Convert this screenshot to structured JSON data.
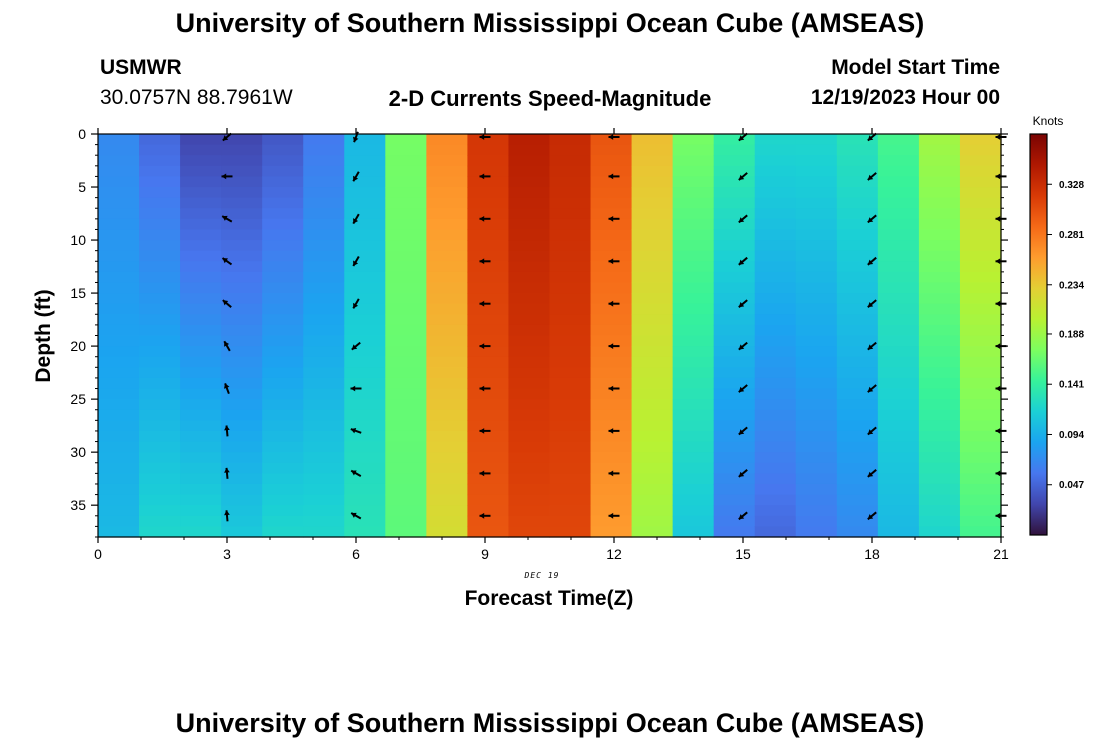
{
  "header": {
    "title": "University of Southern Mississippi Ocean Cube (AMSEAS)",
    "station_name": "USMWR",
    "station_coords": "30.0757N  88.7961W",
    "plot_title": "2-D Currents Speed-Magnitude",
    "start_label": "Model Start Time",
    "start_value": "12/19/2023 Hour 00"
  },
  "footer": {
    "title": "University of Southern Mississippi Ocean Cube (AMSEAS)"
  },
  "chart_data": {
    "type": "heatmap",
    "title": "2-D Currents Speed-Magnitude",
    "xlabel": "Forecast Time(Z)",
    "ylabel": "Depth (ft)",
    "x_ticks": [
      0,
      3,
      6,
      9,
      12,
      15,
      18,
      21
    ],
    "x_tick_labels": [
      "0",
      "3",
      "6",
      "9",
      "12",
      "15",
      "18",
      "21"
    ],
    "x_range": [
      0,
      21
    ],
    "y_ticks": [
      0,
      5,
      10,
      15,
      20,
      25,
      30,
      35
    ],
    "y_tick_labels": [
      "0",
      "5",
      "10",
      "15",
      "20",
      "25",
      "30",
      "35"
    ],
    "y_range": [
      0,
      38
    ],
    "y_inverted": true,
    "date_label": "DEC 19",
    "colorbar": {
      "label": "Knots",
      "ticks": [
        0.047,
        0.094,
        0.141,
        0.188,
        0.234,
        0.281,
        0.328
      ],
      "tick_labels": [
        "0.047",
        "0.094",
        "0.141",
        "0.188",
        "0.234",
        "0.281",
        "0.328"
      ],
      "range": [
        0.0,
        0.375
      ],
      "colors": [
        "#30123b",
        "#4146ad",
        "#4777ef",
        "#1ba4f0",
        "#1bd0d5",
        "#37f29a",
        "#7cfe5f",
        "#b9f132",
        "#e4cf34",
        "#fe9c2e",
        "#f56917",
        "#d83a06",
        "#af1801",
        "#7a0403"
      ]
    },
    "surface_speed_by_hour": [
      0.07,
      0.05,
      0.03,
      0.03,
      0.04,
      0.06,
      0.1,
      0.17,
      0.27,
      0.32,
      0.34,
      0.33,
      0.3,
      0.24,
      0.17,
      0.14,
      0.12,
      0.12,
      0.13,
      0.15,
      0.19,
      0.23
    ],
    "bottom_speed_by_hour": [
      0.1,
      0.12,
      0.12,
      0.11,
      0.12,
      0.12,
      0.13,
      0.16,
      0.22,
      0.3,
      0.31,
      0.31,
      0.26,
      0.19,
      0.11,
      0.06,
      0.05,
      0.06,
      0.07,
      0.1,
      0.12,
      0.15
    ],
    "arrows": {
      "hours": [
        3,
        6,
        9,
        12,
        15,
        18,
        21
      ],
      "depths": [
        0,
        4,
        8,
        12,
        16,
        20,
        24,
        28,
        32,
        36
      ],
      "direction_deg_by_hour": [
        [
          220,
          180,
          150,
          145,
          140,
          120,
          110,
          95,
          95,
          95
        ],
        [
          250,
          240,
          240,
          240,
          240,
          220,
          180,
          160,
          150,
          150
        ],
        [
          180,
          180,
          180,
          180,
          180,
          180,
          180,
          180,
          180,
          180
        ],
        [
          180,
          180,
          180,
          180,
          180,
          180,
          180,
          180,
          180,
          180
        ],
        [
          220,
          220,
          220,
          220,
          220,
          220,
          220,
          220,
          220,
          220
        ],
        [
          220,
          220,
          220,
          220,
          220,
          220,
          220,
          220,
          220,
          220
        ],
        [
          180,
          180,
          180,
          180,
          180,
          180,
          180,
          180,
          180,
          180
        ]
      ]
    }
  }
}
